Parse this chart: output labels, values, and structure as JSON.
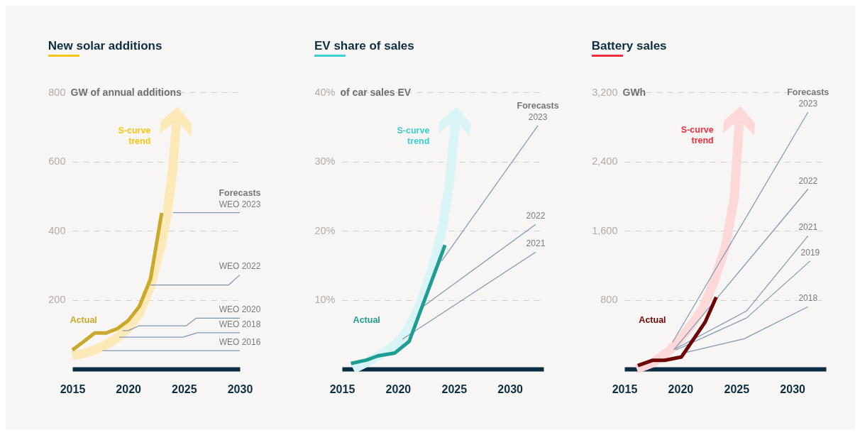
{
  "chart_data": [
    {
      "type": "line",
      "title": "New solar additions",
      "ylabel": "GW of annual additions",
      "xlim": [
        2015,
        2030
      ],
      "xticks": [
        2015,
        2020,
        2025,
        2030
      ],
      "ylim": [
        0,
        800
      ],
      "yticks": [
        200,
        400,
        600,
        800
      ],
      "grid": "y",
      "annotations": [
        {
          "text": "Forecasts",
          "x": 2030,
          "y": 452
        }
      ],
      "series": [
        {
          "name": "S-curve trend",
          "color": "#fbe9b7",
          "x": [
            2015,
            2016,
            2017,
            2018,
            2019,
            2020,
            2021,
            2022,
            2023,
            2023.5,
            2024,
            2024.3
          ],
          "values": [
            40,
            45,
            55,
            70,
            90,
            118,
            160,
            240,
            365,
            451,
            580,
            706
          ]
        },
        {
          "name": "WEO 2023",
          "color": "#7f96ae",
          "x": [
            2024,
            2030
          ],
          "values": [
            452,
            452
          ]
        },
        {
          "name": "WEO 2022",
          "color": "#7f96ae",
          "x": [
            2022,
            2029,
            2030
          ],
          "values": [
            243,
            243,
            272
          ]
        },
        {
          "name": "WEO 2020",
          "color": "#7f96ae",
          "x": [
            2019.5,
            2020,
            2021,
            2025.2,
            2026.1,
            2030
          ],
          "values": [
            111,
            111,
            125,
            125,
            147,
            147
          ]
        },
        {
          "name": "WEO 2018",
          "color": "#7f96ae",
          "x": [
            2019.2,
            2024.9,
            2026.2,
            2030
          ],
          "values": [
            92,
            92,
            105,
            105
          ]
        },
        {
          "name": "WEO 2016",
          "color": "#7f96ae",
          "x": [
            2017.7,
            2030
          ],
          "values": [
            53,
            53
          ]
        },
        {
          "name": "Actual",
          "color": "#c9a82b",
          "x": [
            2015,
            2016,
            2017,
            2018,
            2019,
            2020,
            2021,
            2022,
            2023
          ],
          "values": [
            55,
            79,
            104,
            104,
            116,
            140,
            181,
            260,
            451
          ]
        }
      ]
    },
    {
      "type": "line",
      "title": "EV share of sales",
      "ylabel": "of car sales EV",
      "xlim": [
        2015,
        2033
      ],
      "xticks": [
        2015,
        2020,
        2025,
        2030
      ],
      "ylim": [
        0,
        40
      ],
      "yticks": [
        {
          "value": 10,
          "label": "10%"
        },
        {
          "value": 20,
          "label": "20%"
        },
        {
          "value": 30,
          "label": "30%"
        },
        {
          "value": 40,
          "label": "40%"
        }
      ],
      "grid": "y",
      "annotations": [
        {
          "text": "Forecasts",
          "x": 2032.5,
          "y": 35.2
        }
      ],
      "series": [
        {
          "name": "S-curve trend",
          "color": "#d9f4f4",
          "x": [
            2016,
            2017,
            2018,
            2019,
            2020,
            2021,
            2022,
            2023,
            2024,
            2024.6,
            2025.1
          ],
          "values": [
            0,
            0.8,
            1.7,
            2.7,
            3.8,
            6,
            9.5,
            14.2,
            20.5,
            27,
            35.3
          ]
        },
        {
          "name": "2023",
          "color": "#7f96ae",
          "x": [
            2023.9,
            2032.5
          ],
          "values": [
            15.6,
            35.2
          ]
        },
        {
          "name": "2022",
          "color": "#7f96ae",
          "x": [
            2022.3,
            2032.3
          ],
          "values": [
            9.1,
            20.9
          ]
        },
        {
          "name": "2021",
          "color": "#7f96ae",
          "x": [
            2020.4,
            2032.3
          ],
          "values": [
            4.3,
            16.9
          ]
        },
        {
          "name": "Actual",
          "color": "#1f9d92",
          "x": [
            2015.8,
            2017.2,
            2018.2,
            2019.7,
            2021,
            2024.2
          ],
          "values": [
            0.8,
            1.3,
            1.9,
            2.3,
            4,
            17.9
          ]
        }
      ]
    },
    {
      "type": "line",
      "title": "Battery sales",
      "ylabel": "GWh",
      "xlim": [
        2015,
        2033
      ],
      "xticks": [
        2015,
        2020,
        2025,
        2030
      ],
      "ylim": [
        0,
        3200
      ],
      "yticks": [
        800,
        {
          "value": 1600,
          "label": "1,600"
        },
        {
          "value": 2400,
          "label": "2,400"
        },
        {
          "value": 3200,
          "label": "3,200"
        }
      ],
      "grid": "y",
      "annotations": [
        {
          "text": "Forecasts",
          "x": 2031.4,
          "y": 2970
        }
      ],
      "series": [
        {
          "name": "S-curve trend",
          "color": "#fcd8d8",
          "x": [
            2016.1,
            2017.5,
            2019,
            2020,
            2021,
            2022,
            2023,
            2024,
            2024.8,
            2025.25
          ],
          "values": [
            0,
            70,
            210,
            350,
            510,
            700,
            1010,
            1400,
            1970,
            2830
          ]
        },
        {
          "name": "2023",
          "color": "#7f96ae",
          "x": [
            2019.3,
            2031.4
          ],
          "values": [
            310,
            2970
          ]
        },
        {
          "name": "2022",
          "color": "#7f96ae",
          "x": [
            2019.4,
            2031.4
          ],
          "values": [
            220,
            2080
          ]
        },
        {
          "name": "2021",
          "color": "#7f96ae",
          "x": [
            2019.5,
            2025.9,
            2031.4
          ],
          "values": [
            230,
            670,
            1540
          ]
        },
        {
          "name": "2019",
          "color": "#7f96ae",
          "x": [
            2019.6,
            2025.9,
            2031.6
          ],
          "values": [
            220,
            590,
            1250
          ]
        },
        {
          "name": "2018",
          "color": "#7f96ae",
          "x": [
            2020.1,
            2025.7,
            2031.4
          ],
          "values": [
            180,
            350,
            720
          ]
        },
        {
          "name": "Actual",
          "color": "#6d0505",
          "x": [
            2016.2,
            2017.5,
            2018.6,
            2020.1,
            2022.2,
            2023.2
          ],
          "values": [
            40,
            100,
            100,
            140,
            540,
            830
          ]
        }
      ]
    }
  ]
}
